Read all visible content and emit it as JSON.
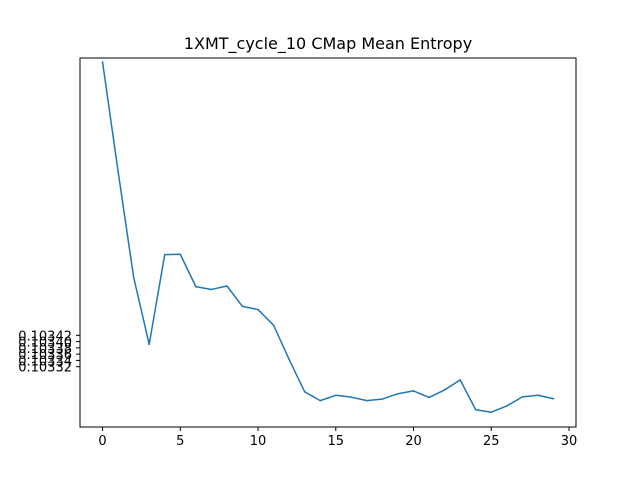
{
  "chart_data": {
    "type": "line",
    "title": "1XMT_cycle_10 CMap Mean Entropy",
    "xlabel": "",
    "ylabel": "",
    "xlim": [
      -1.45,
      30.45
    ],
    "ylim": [
      0.103128,
      0.104303
    ],
    "xticks": [
      0,
      5,
      10,
      15,
      20,
      25,
      30
    ],
    "xtick_labels": [
      "0",
      "5",
      "10",
      "15",
      "20",
      "25",
      "30"
    ],
    "yticks": [
      0.10332,
      0.10334,
      0.10336,
      0.10338,
      0.1034,
      0.10342
    ],
    "ytick_labels": [
      "0.10332",
      "0.10334",
      "0.10336",
      "0.10338",
      "0.10340",
      "0.10342"
    ],
    "grid": false,
    "legend": "none",
    "series": [
      {
        "color": "#1f77b4",
        "x": [
          0,
          1,
          2,
          3,
          4,
          5,
          6,
          7,
          8,
          9,
          10,
          11,
          12,
          13,
          14,
          15,
          16,
          17,
          18,
          19,
          20,
          21,
          22,
          23,
          24,
          25,
          26,
          27,
          28,
          29
        ],
        "values": [
          0.10429,
          0.103942,
          0.103605,
          0.103391,
          0.103677,
          0.103678,
          0.103575,
          0.103566,
          0.103577,
          0.103512,
          0.103502,
          0.103452,
          0.103343,
          0.10324,
          0.103212,
          0.103229,
          0.103223,
          0.103212,
          0.103217,
          0.103234,
          0.103243,
          0.103222,
          0.103246,
          0.103278,
          0.103183,
          0.103175,
          0.103195,
          0.103224,
          0.103229,
          0.103218
        ]
      }
    ]
  }
}
